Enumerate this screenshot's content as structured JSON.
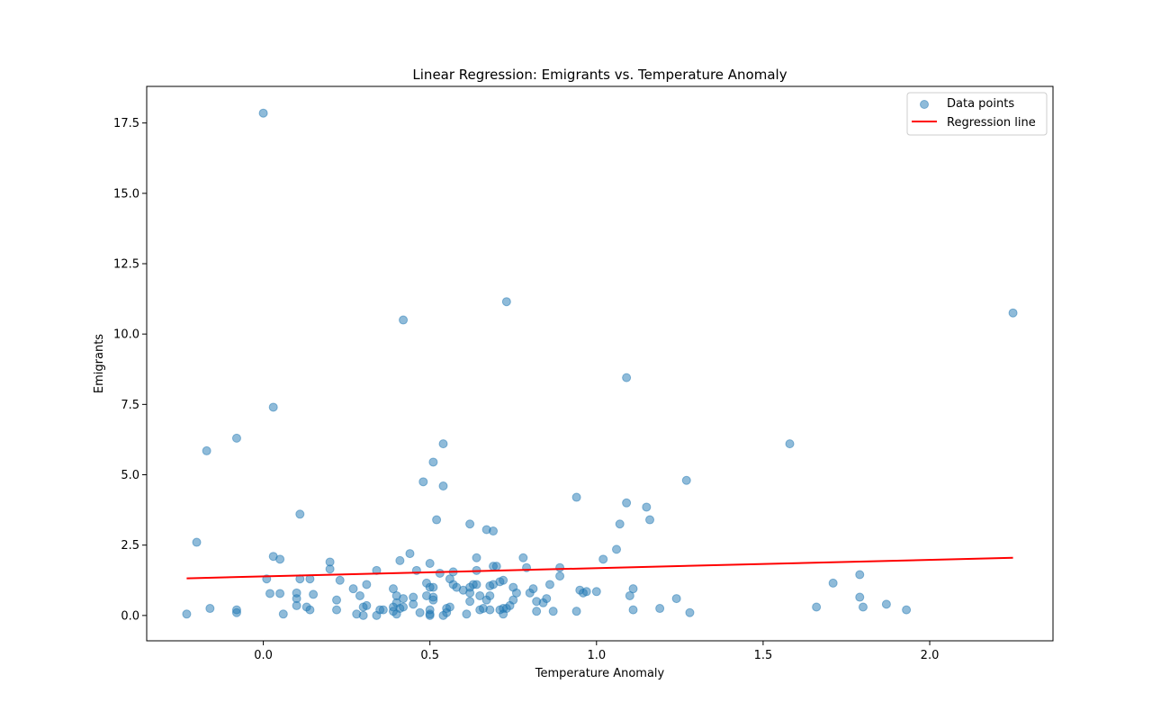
{
  "chart_data": {
    "type": "scatter",
    "title": "Linear Regression: Emigrants vs. Temperature Anomaly",
    "xlabel": "Temperature Anomaly",
    "ylabel": "Emigrants",
    "xlim": [
      -0.35,
      2.37
    ],
    "ylim": [
      -0.9,
      18.8
    ],
    "xticks": [
      0.0,
      0.5,
      1.0,
      1.5,
      2.0
    ],
    "xtick_labels": [
      "0.0",
      "0.5",
      "1.0",
      "1.5",
      "2.0"
    ],
    "yticks": [
      0.0,
      2.5,
      5.0,
      7.5,
      10.0,
      12.5,
      15.0,
      17.5
    ],
    "ytick_labels": [
      "0.0",
      "2.5",
      "5.0",
      "7.5",
      "10.0",
      "12.5",
      "15.0",
      "17.5"
    ],
    "grid": false,
    "legend": {
      "placement": "top-right",
      "entries": [
        {
          "label": "Data points",
          "kind": "marker",
          "color": "#1f77b4"
        },
        {
          "label": "Regression line",
          "kind": "line",
          "color": "#ff0000"
        }
      ]
    },
    "series": [
      {
        "name": "Data points",
        "kind": "scatter",
        "color": "#1f77b4",
        "alpha": 0.5,
        "points": [
          [
            -0.23,
            0.05
          ],
          [
            -0.2,
            2.6
          ],
          [
            -0.17,
            5.85
          ],
          [
            -0.16,
            0.25
          ],
          [
            -0.08,
            6.3
          ],
          [
            -0.08,
            0.1
          ],
          [
            -0.08,
            0.2
          ],
          [
            0.0,
            17.85
          ],
          [
            0.01,
            1.3
          ],
          [
            0.02,
            0.78
          ],
          [
            0.03,
            7.4
          ],
          [
            0.03,
            2.1
          ],
          [
            0.05,
            2.0
          ],
          [
            0.05,
            0.78
          ],
          [
            0.06,
            0.05
          ],
          [
            0.1,
            0.6
          ],
          [
            0.1,
            0.35
          ],
          [
            0.1,
            0.8
          ],
          [
            0.11,
            1.3
          ],
          [
            0.11,
            3.6
          ],
          [
            0.13,
            0.3
          ],
          [
            0.14,
            0.2
          ],
          [
            0.14,
            1.3
          ],
          [
            0.15,
            0.75
          ],
          [
            0.2,
            1.9
          ],
          [
            0.2,
            1.65
          ],
          [
            0.22,
            0.55
          ],
          [
            0.22,
            0.2
          ],
          [
            0.23,
            1.25
          ],
          [
            0.27,
            0.95
          ],
          [
            0.28,
            0.05
          ],
          [
            0.29,
            0.7
          ],
          [
            0.3,
            0.3
          ],
          [
            0.3,
            0.0
          ],
          [
            0.31,
            0.35
          ],
          [
            0.31,
            1.1
          ],
          [
            0.34,
            0.0
          ],
          [
            0.34,
            1.6
          ],
          [
            0.35,
            0.2
          ],
          [
            0.36,
            0.2
          ],
          [
            0.39,
            0.95
          ],
          [
            0.39,
            0.15
          ],
          [
            0.39,
            0.3
          ],
          [
            0.4,
            0.45
          ],
          [
            0.4,
            0.7
          ],
          [
            0.4,
            0.05
          ],
          [
            0.41,
            0.25
          ],
          [
            0.41,
            1.95
          ],
          [
            0.42,
            10.5
          ],
          [
            0.42,
            0.6
          ],
          [
            0.42,
            0.3
          ],
          [
            0.44,
            2.2
          ],
          [
            0.45,
            0.4
          ],
          [
            0.45,
            0.65
          ],
          [
            0.46,
            1.6
          ],
          [
            0.47,
            0.1
          ],
          [
            0.48,
            4.75
          ],
          [
            0.49,
            1.15
          ],
          [
            0.49,
            0.7
          ],
          [
            0.5,
            0.2
          ],
          [
            0.5,
            0.05
          ],
          [
            0.5,
            0.0
          ],
          [
            0.5,
            1.85
          ],
          [
            0.5,
            1.0
          ],
          [
            0.51,
            0.55
          ],
          [
            0.51,
            1.0
          ],
          [
            0.51,
            0.65
          ],
          [
            0.51,
            5.45
          ],
          [
            0.52,
            3.4
          ],
          [
            0.53,
            1.5
          ],
          [
            0.54,
            0.0
          ],
          [
            0.54,
            6.1
          ],
          [
            0.54,
            4.6
          ],
          [
            0.55,
            0.25
          ],
          [
            0.55,
            0.1
          ],
          [
            0.56,
            1.3
          ],
          [
            0.56,
            0.3
          ],
          [
            0.57,
            1.1
          ],
          [
            0.57,
            1.55
          ],
          [
            0.58,
            1.0
          ],
          [
            0.6,
            0.9
          ],
          [
            0.61,
            0.05
          ],
          [
            0.62,
            3.25
          ],
          [
            0.62,
            1.0
          ],
          [
            0.62,
            0.5
          ],
          [
            0.62,
            0.8
          ],
          [
            0.63,
            1.1
          ],
          [
            0.64,
            1.6
          ],
          [
            0.64,
            1.1
          ],
          [
            0.64,
            2.05
          ],
          [
            0.65,
            0.7
          ],
          [
            0.65,
            0.2
          ],
          [
            0.66,
            0.25
          ],
          [
            0.67,
            3.05
          ],
          [
            0.67,
            0.55
          ],
          [
            0.68,
            1.05
          ],
          [
            0.68,
            0.7
          ],
          [
            0.68,
            0.2
          ],
          [
            0.69,
            3.0
          ],
          [
            0.69,
            1.75
          ],
          [
            0.69,
            1.1
          ],
          [
            0.7,
            1.75
          ],
          [
            0.71,
            0.2
          ],
          [
            0.71,
            1.2
          ],
          [
            0.72,
            1.25
          ],
          [
            0.72,
            0.05
          ],
          [
            0.72,
            0.25
          ],
          [
            0.73,
            11.15
          ],
          [
            0.73,
            0.25
          ],
          [
            0.74,
            0.35
          ],
          [
            0.75,
            0.55
          ],
          [
            0.75,
            1.0
          ],
          [
            0.76,
            0.8
          ],
          [
            0.78,
            2.05
          ],
          [
            0.79,
            1.7
          ],
          [
            0.8,
            0.8
          ],
          [
            0.81,
            0.95
          ],
          [
            0.82,
            0.15
          ],
          [
            0.82,
            0.5
          ],
          [
            0.84,
            0.45
          ],
          [
            0.85,
            0.6
          ],
          [
            0.86,
            1.1
          ],
          [
            0.87,
            0.15
          ],
          [
            0.89,
            1.7
          ],
          [
            0.89,
            1.4
          ],
          [
            0.94,
            4.2
          ],
          [
            0.94,
            0.15
          ],
          [
            0.95,
            0.9
          ],
          [
            0.96,
            0.8
          ],
          [
            0.97,
            0.85
          ],
          [
            1.0,
            0.85
          ],
          [
            1.02,
            2.0
          ],
          [
            1.06,
            2.35
          ],
          [
            1.07,
            3.25
          ],
          [
            1.09,
            8.45
          ],
          [
            1.09,
            4.0
          ],
          [
            1.1,
            0.7
          ],
          [
            1.11,
            0.95
          ],
          [
            1.11,
            0.2
          ],
          [
            1.15,
            3.85
          ],
          [
            1.16,
            3.4
          ],
          [
            1.19,
            0.25
          ],
          [
            1.24,
            0.6
          ],
          [
            1.27,
            4.8
          ],
          [
            1.28,
            0.1
          ],
          [
            1.58,
            6.1
          ],
          [
            1.66,
            0.3
          ],
          [
            1.71,
            1.15
          ],
          [
            1.79,
            1.45
          ],
          [
            1.79,
            0.65
          ],
          [
            1.8,
            0.3
          ],
          [
            1.87,
            0.4
          ],
          [
            1.93,
            0.2
          ],
          [
            2.25,
            10.75
          ]
        ]
      },
      {
        "name": "Regression line",
        "kind": "line",
        "color": "#ff0000",
        "x": [
          -0.23,
          2.25
        ],
        "y": [
          1.32,
          2.05
        ]
      }
    ]
  }
}
